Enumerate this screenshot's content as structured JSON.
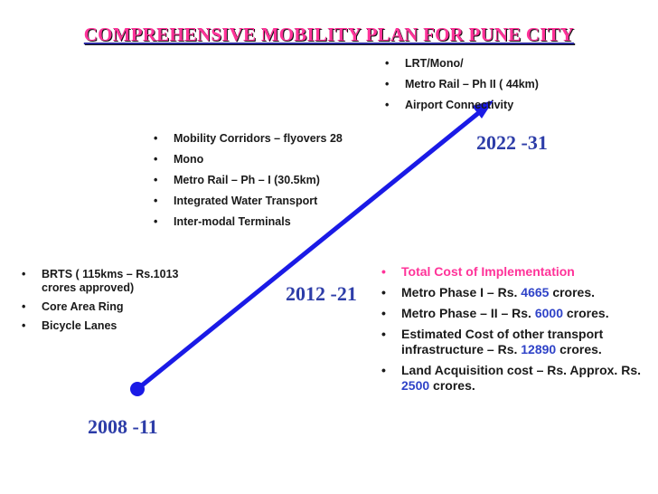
{
  "title": "COMPREHENSIVE MOBILITY PLAN FOR PUNE CITY",
  "bullet_symbol": "•",
  "phases": [
    {
      "period": "2008 -11",
      "items": [
        "BRTS ( 115kms – Rs.1013 crores approved)",
        "Core Area Ring",
        "Bicycle Lanes"
      ]
    },
    {
      "period": "2012 -21",
      "items": [
        "Mobility Corridors – flyovers 28",
        "Mono",
        "Metro Rail – Ph – I (30.5km)",
        "Integrated Water Transport",
        "Inter-modal Terminals"
      ]
    },
    {
      "period": "2022 -31",
      "items": [
        "LRT/Mono/",
        "Metro Rail – Ph II ( 44km)",
        "Airport Connectivity"
      ]
    }
  ],
  "costs": {
    "heading": "Total Cost of Implementation",
    "metro_phase1": {
      "prefix": "Metro  Phase I – Rs. ",
      "amount": "4665",
      "suffix": " crores."
    },
    "metro_phase2": {
      "prefix": "Metro Phase – II – Rs. ",
      "amount": "6000",
      "suffix": " crores."
    },
    "other_transport": {
      "prefix": "Estimated Cost of other transport infrastructure – Rs. ",
      "amount": "12890",
      "suffix": " crores."
    },
    "land_acquisition": {
      "prefix": "Land Acquisition cost – Rs. Approx. Rs. ",
      "amount": "2500",
      "suffix": " crores."
    }
  },
  "colors": {
    "title_pink": "#ff3399",
    "period_blue": "#2d3da8",
    "arrow_blue": "#1a1ae6",
    "amount_blue": "#2f43c8",
    "text_dark": "#1a1a1a"
  }
}
